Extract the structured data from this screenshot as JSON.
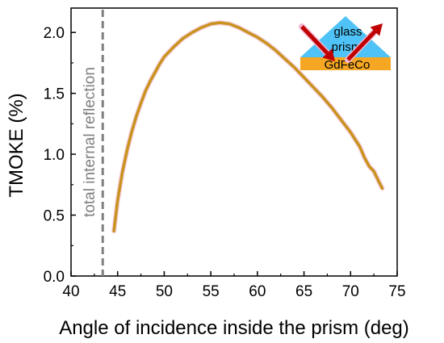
{
  "chart_data": {
    "type": "line",
    "xlabel": "Angle of incidence inside the prism (deg)",
    "ylabel": "TMOKE (%)",
    "xlim": [
      40,
      75
    ],
    "ylim": [
      0,
      2.2
    ],
    "x_ticks": [
      "40",
      "45",
      "50",
      "55",
      "60",
      "65",
      "70",
      "75"
    ],
    "y_ticks": [
      "0.0",
      "0.5",
      "1.0",
      "1.5",
      "2.0"
    ],
    "grid": false,
    "legend": "none",
    "series": [
      {
        "color": "#c8941e",
        "x": [
          44.6,
          45.0,
          45.5,
          46.0,
          46.5,
          47.0,
          47.5,
          48.0,
          48.5,
          49.0,
          49.5,
          50.0,
          51.0,
          52.0,
          53.0,
          54.0,
          55.0,
          56.0,
          57.0,
          58.0,
          59.0,
          60.0,
          61.0,
          62.0,
          63.0,
          64.0,
          65.0,
          66.0,
          67.0,
          68.0,
          69.0,
          70.0,
          71.0,
          71.5,
          72.0,
          72.5,
          73.0,
          73.4
        ],
        "values": [
          0.37,
          0.62,
          0.85,
          1.03,
          1.18,
          1.31,
          1.42,
          1.52,
          1.6,
          1.67,
          1.74,
          1.8,
          1.88,
          1.95,
          2.0,
          2.04,
          2.07,
          2.08,
          2.07,
          2.04,
          2.0,
          1.96,
          1.91,
          1.85,
          1.78,
          1.71,
          1.63,
          1.55,
          1.47,
          1.38,
          1.28,
          1.18,
          1.06,
          0.97,
          0.9,
          0.86,
          0.78,
          0.72
        ]
      }
    ],
    "annotations": {
      "tir_line_x": 43.4,
      "tir_label": "total internal reflection",
      "tir_color": "#808080",
      "inset_prism_label_1": "glass",
      "inset_prism_label_2": "prism",
      "inset_film_label": "GdFeCo",
      "prism_color": "#4fc3f7",
      "film_color": "#f5a623",
      "arrow_color": "#c00000"
    }
  }
}
